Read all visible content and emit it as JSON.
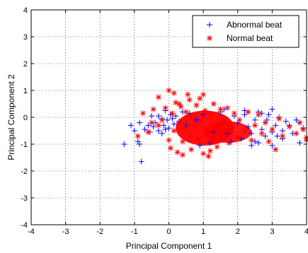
{
  "chart_data": {
    "type": "scatter",
    "title": "",
    "xlabel": "Principal Component 1",
    "ylabel": "Principal Component 2",
    "xlim": [
      -4,
      4
    ],
    "ylim": [
      -4,
      4
    ],
    "xticks": [
      "-4",
      "-3",
      "-2",
      "-1",
      "0",
      "1",
      "2",
      "3",
      "4"
    ],
    "yticks": [
      "-4",
      "-3",
      "-2",
      "-1",
      "0",
      "1",
      "2",
      "3",
      "4"
    ],
    "grid": true,
    "grid_style": "dotted",
    "legend_position": "top-right",
    "series": [
      {
        "name": "Abnormal beat",
        "marker": "+",
        "color": "#0000ff",
        "points": [
          [
            -1.3,
            -1.0
          ],
          [
            -1.1,
            -0.3
          ],
          [
            -1.0,
            -0.5
          ],
          [
            -0.9,
            -0.9
          ],
          [
            -0.85,
            -1.0
          ],
          [
            -0.8,
            -1.65
          ],
          [
            -0.85,
            -0.2
          ],
          [
            -0.7,
            -0.45
          ],
          [
            -0.6,
            -0.3
          ],
          [
            -0.55,
            -0.55
          ],
          [
            -0.5,
            0.05
          ],
          [
            -0.45,
            -0.35
          ],
          [
            -0.4,
            -0.2
          ],
          [
            -0.3,
            -0.5
          ],
          [
            -0.3,
            0.05
          ],
          [
            -0.2,
            -0.05
          ],
          [
            -0.15,
            -0.3
          ],
          [
            -0.1,
            0.25
          ],
          [
            -0.05,
            -0.1
          ],
          [
            0.0,
            -0.4
          ],
          [
            0.05,
            0.1
          ],
          [
            0.1,
            -0.05
          ],
          [
            0.15,
            -0.25
          ],
          [
            0.2,
            0.05
          ],
          [
            -0.2,
            -0.6
          ],
          [
            -0.1,
            -0.45
          ],
          [
            0.3,
            -0.15
          ],
          [
            0.4,
            0.2
          ],
          [
            0.5,
            -0.3
          ],
          [
            0.6,
            0.15
          ],
          [
            0.8,
            -0.1
          ],
          [
            1.0,
            0.1
          ],
          [
            1.3,
            -0.55
          ],
          [
            1.5,
            0.2
          ],
          [
            1.7,
            -0.6
          ],
          [
            1.9,
            0.05
          ],
          [
            2.0,
            -0.2
          ],
          [
            2.1,
            -0.8
          ],
          [
            2.2,
            0.1
          ],
          [
            2.3,
            -0.35
          ],
          [
            2.4,
            -0.6
          ],
          [
            2.5,
            -0.1
          ],
          [
            2.5,
            -0.9
          ],
          [
            2.6,
            0.2
          ],
          [
            2.7,
            -0.45
          ],
          [
            2.8,
            -0.7
          ],
          [
            2.85,
            -0.1
          ],
          [
            2.9,
            0.1
          ],
          [
            3.0,
            -0.55
          ],
          [
            3.0,
            -1.05
          ],
          [
            3.1,
            -0.3
          ],
          [
            3.15,
            -0.7
          ],
          [
            3.2,
            0.0
          ],
          [
            3.3,
            -0.5
          ],
          [
            3.4,
            -0.15
          ],
          [
            3.5,
            -0.3
          ],
          [
            3.6,
            -0.6
          ],
          [
            3.7,
            -0.1
          ],
          [
            3.8,
            -0.95
          ],
          [
            3.9,
            -0.4
          ],
          [
            2.2,
            0.25
          ],
          [
            2.7,
            0.15
          ],
          [
            1.8,
            -0.9
          ],
          [
            2.4,
            -1.05
          ],
          [
            3.0,
            0.3
          ],
          [
            3.3,
            -0.8
          ],
          [
            1.2,
            -0.95
          ],
          [
            0.9,
            -1.05
          ],
          [
            2.6,
            -0.95
          ],
          [
            1.6,
            0.3
          ]
        ]
      },
      {
        "name": "Normal beat",
        "marker": "*",
        "color": "#ff0000",
        "points": [
          [
            -0.9,
            -0.7
          ],
          [
            -0.75,
            0.15
          ],
          [
            -0.6,
            -0.55
          ],
          [
            -0.5,
            -0.2
          ],
          [
            -0.45,
            0.3
          ],
          [
            -0.3,
            -0.3
          ],
          [
            -0.3,
            0.75
          ],
          [
            -0.2,
            -0.1
          ],
          [
            -0.1,
            0.35
          ],
          [
            0.0,
            1.0
          ],
          [
            0.0,
            -0.85
          ],
          [
            0.05,
            -1.15
          ],
          [
            0.1,
            0.15
          ],
          [
            0.15,
            -0.5
          ],
          [
            0.2,
            0.55
          ],
          [
            0.25,
            -1.3
          ],
          [
            0.3,
            -0.2
          ],
          [
            0.35,
            0.4
          ],
          [
            0.4,
            -0.9
          ],
          [
            0.45,
            -0.4
          ],
          [
            0.5,
            0.2
          ],
          [
            0.55,
            0.85
          ],
          [
            0.6,
            -0.65
          ],
          [
            0.65,
            -1.2
          ],
          [
            0.7,
            0.0
          ],
          [
            0.75,
            -0.3
          ],
          [
            0.8,
            0.45
          ],
          [
            0.85,
            -0.8
          ],
          [
            0.9,
            0.7
          ],
          [
            0.95,
            -0.15
          ],
          [
            1.0,
            -1.35
          ],
          [
            1.05,
            0.25
          ],
          [
            1.1,
            -0.55
          ],
          [
            1.15,
            -1.45
          ],
          [
            1.2,
            0.1
          ],
          [
            1.25,
            -0.9
          ],
          [
            1.3,
            0.5
          ],
          [
            1.35,
            -0.35
          ],
          [
            1.4,
            -1.1
          ],
          [
            1.5,
            0.3
          ],
          [
            1.55,
            -0.7
          ],
          [
            1.6,
            -0.1
          ],
          [
            1.7,
            0.35
          ],
          [
            1.75,
            -0.95
          ],
          [
            1.8,
            -0.4
          ],
          [
            1.9,
            0.15
          ],
          [
            2.0,
            -0.75
          ],
          [
            2.05,
            -0.1
          ],
          [
            2.2,
            -0.5
          ],
          [
            2.3,
            0.2
          ],
          [
            2.4,
            -0.85
          ],
          [
            2.5,
            -0.3
          ],
          [
            2.6,
            0.1
          ],
          [
            2.7,
            -0.6
          ],
          [
            2.8,
            -0.2
          ],
          [
            2.9,
            -0.9
          ],
          [
            3.0,
            -0.45
          ],
          [
            3.1,
            -1.2
          ],
          [
            3.2,
            -0.05
          ],
          [
            3.3,
            -0.7
          ],
          [
            3.5,
            -0.35
          ],
          [
            3.7,
            -0.6
          ],
          [
            3.9,
            -0.45
          ],
          [
            4.0,
            -0.75
          ],
          [
            4.0,
            -0.85
          ],
          [
            3.8,
            -0.2
          ],
          [
            0.4,
            -1.4
          ],
          [
            1.2,
            -1.25
          ],
          [
            0.6,
            0.65
          ],
          [
            0.15,
            0.9
          ],
          [
            1.0,
            0.85
          ],
          [
            0.3,
            0.5
          ]
        ]
      }
    ]
  }
}
